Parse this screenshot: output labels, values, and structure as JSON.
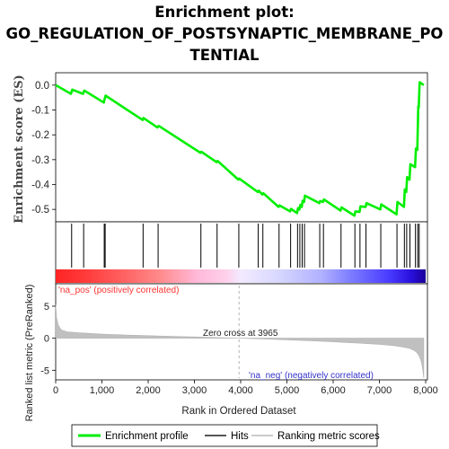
{
  "title_lines": [
    "Enrichment plot:",
    "GO_REGULATION_OF_POSTSYNAPTIC_MEMBRANE_PO",
    "TENTIAL"
  ],
  "colors": {
    "enrichment_line": "#00ee00",
    "hits": "#000000",
    "metric_fill": "#c0c0c0",
    "pos_label": "#ff3333",
    "neg_label": "#3333cc",
    "zero_line": "#aaaaaa",
    "heat_pos_strong": "#ff2222",
    "heat_neg_strong": "#1a0099"
  },
  "chart_data": [
    {
      "type": "line",
      "panel": "enrichment",
      "ylabel": "Enrichment score (ES)",
      "xlim": [
        0,
        8000
      ],
      "ylim": [
        -0.55,
        0.05
      ],
      "yticks": [
        0.0,
        -0.1,
        -0.2,
        -0.3,
        -0.4,
        -0.5
      ],
      "ytick_labels": [
        "0.0",
        "-0.1",
        "-0.2",
        "-0.3",
        "-0.4",
        "-0.5"
      ],
      "series": [
        {
          "name": "Enrichment profile",
          "x": [
            0,
            330,
            360,
            590,
            620,
            1040,
            1060,
            1080,
            1880,
            1900,
            2200,
            2230,
            3130,
            3150,
            3480,
            3500,
            3950,
            3970,
            4370,
            4390,
            4470,
            4490,
            4820,
            4840,
            5070,
            5090,
            5220,
            5240,
            5270,
            5290,
            5320,
            5340,
            5370,
            5390,
            5700,
            5720,
            5780,
            5800,
            6160,
            6180,
            6460,
            6480,
            6570,
            6590,
            6700,
            6720,
            7020,
            7040,
            7370,
            7390,
            7530,
            7550,
            7580,
            7600,
            7650,
            7670,
            7770,
            7790,
            7820,
            7840,
            7850,
            7870,
            7960
          ],
          "y": [
            0.0,
            -0.035,
            -0.018,
            -0.035,
            -0.022,
            -0.07,
            -0.055,
            -0.042,
            -0.14,
            -0.132,
            -0.17,
            -0.164,
            -0.272,
            -0.268,
            -0.31,
            -0.305,
            -0.38,
            -0.376,
            -0.43,
            -0.425,
            -0.44,
            -0.435,
            -0.49,
            -0.484,
            -0.508,
            -0.498,
            -0.515,
            -0.495,
            -0.5,
            -0.482,
            -0.49,
            -0.465,
            -0.47,
            -0.445,
            -0.475,
            -0.466,
            -0.47,
            -0.46,
            -0.505,
            -0.492,
            -0.525,
            -0.508,
            -0.51,
            -0.488,
            -0.49,
            -0.475,
            -0.5,
            -0.48,
            -0.52,
            -0.47,
            -0.49,
            -0.42,
            -0.43,
            -0.37,
            -0.38,
            -0.318,
            -0.33,
            -0.255,
            -0.26,
            -0.085,
            -0.09,
            0.012,
            0.0
          ]
        }
      ]
    },
    {
      "type": "scatter",
      "panel": "hits",
      "series": [
        {
          "name": "Hits",
          "x": [
            345,
            605,
            1050,
            1070,
            1890,
            2215,
            3140,
            3490,
            3960,
            4380,
            4480,
            4830,
            5080,
            5230,
            5280,
            5330,
            5380,
            5710,
            5790,
            6170,
            6470,
            6580,
            6710,
            7030,
            7380,
            7540,
            7590,
            7660,
            7780,
            7830,
            7860
          ]
        }
      ]
    },
    {
      "type": "area",
      "panel": "ranked_metric",
      "xlabel": "Rank in Ordered Dataset",
      "ylabel": "Ranked list metric (PreRanked)",
      "xlim": [
        0,
        8000
      ],
      "ylim": [
        -6.5,
        8.5
      ],
      "yticks": [
        5,
        0,
        -5
      ],
      "ytick_labels": [
        "5",
        "0",
        "-5"
      ],
      "xticks": [
        0,
        1000,
        2000,
        3000,
        4000,
        5000,
        6000,
        7000,
        8000
      ],
      "xtick_labels": [
        "0",
        "1,000",
        "2,000",
        "3,000",
        "4,000",
        "5,000",
        "6,000",
        "7,000",
        "8,000"
      ],
      "x": [
        0,
        20,
        60,
        120,
        250,
        500,
        1000,
        1500,
        2000,
        2500,
        3000,
        3500,
        3965,
        4500,
        5000,
        5500,
        6000,
        6500,
        7000,
        7300,
        7500,
        7650,
        7750,
        7820,
        7870,
        7910,
        7940,
        7960
      ],
      "values": [
        5.2,
        3.2,
        2.0,
        1.3,
        1.0,
        0.85,
        0.65,
        0.5,
        0.4,
        0.3,
        0.2,
        0.1,
        0.0,
        -0.12,
        -0.25,
        -0.4,
        -0.55,
        -0.75,
        -0.95,
        -1.15,
        -1.35,
        -1.6,
        -1.9,
        -2.3,
        -2.9,
        -3.8,
        -5.0,
        -6.2
      ],
      "zero_cross_label": "Zero cross at 3965",
      "pos_label": "'na_pos' (positively correlated)",
      "neg_label": "'na_neg' (negatively correlated)"
    }
  ],
  "legend": {
    "items": [
      {
        "label": "Enrichment profile",
        "kind": "line",
        "color": "#00ee00"
      },
      {
        "label": "Hits",
        "kind": "line",
        "color": "#555555"
      },
      {
        "label": "Ranking metric scores",
        "kind": "line",
        "color": "#cccccc"
      }
    ]
  }
}
